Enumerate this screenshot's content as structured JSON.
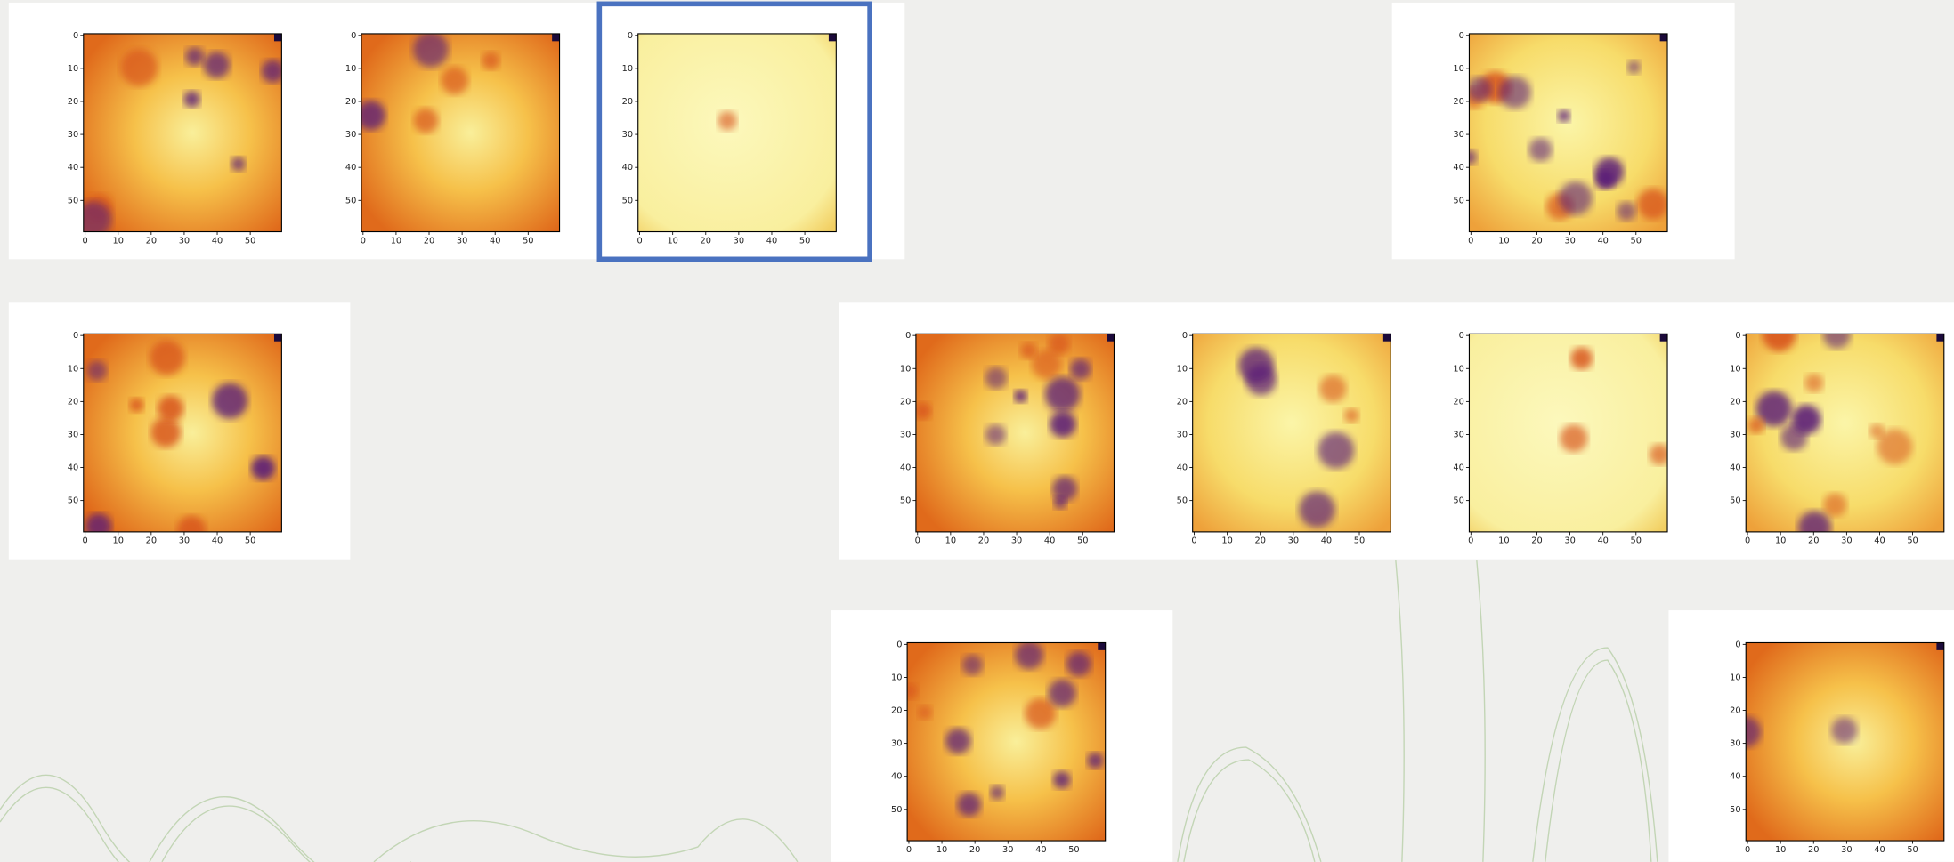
{
  "axis_ticks": [
    0,
    10,
    20,
    30,
    40,
    50
  ]
}
